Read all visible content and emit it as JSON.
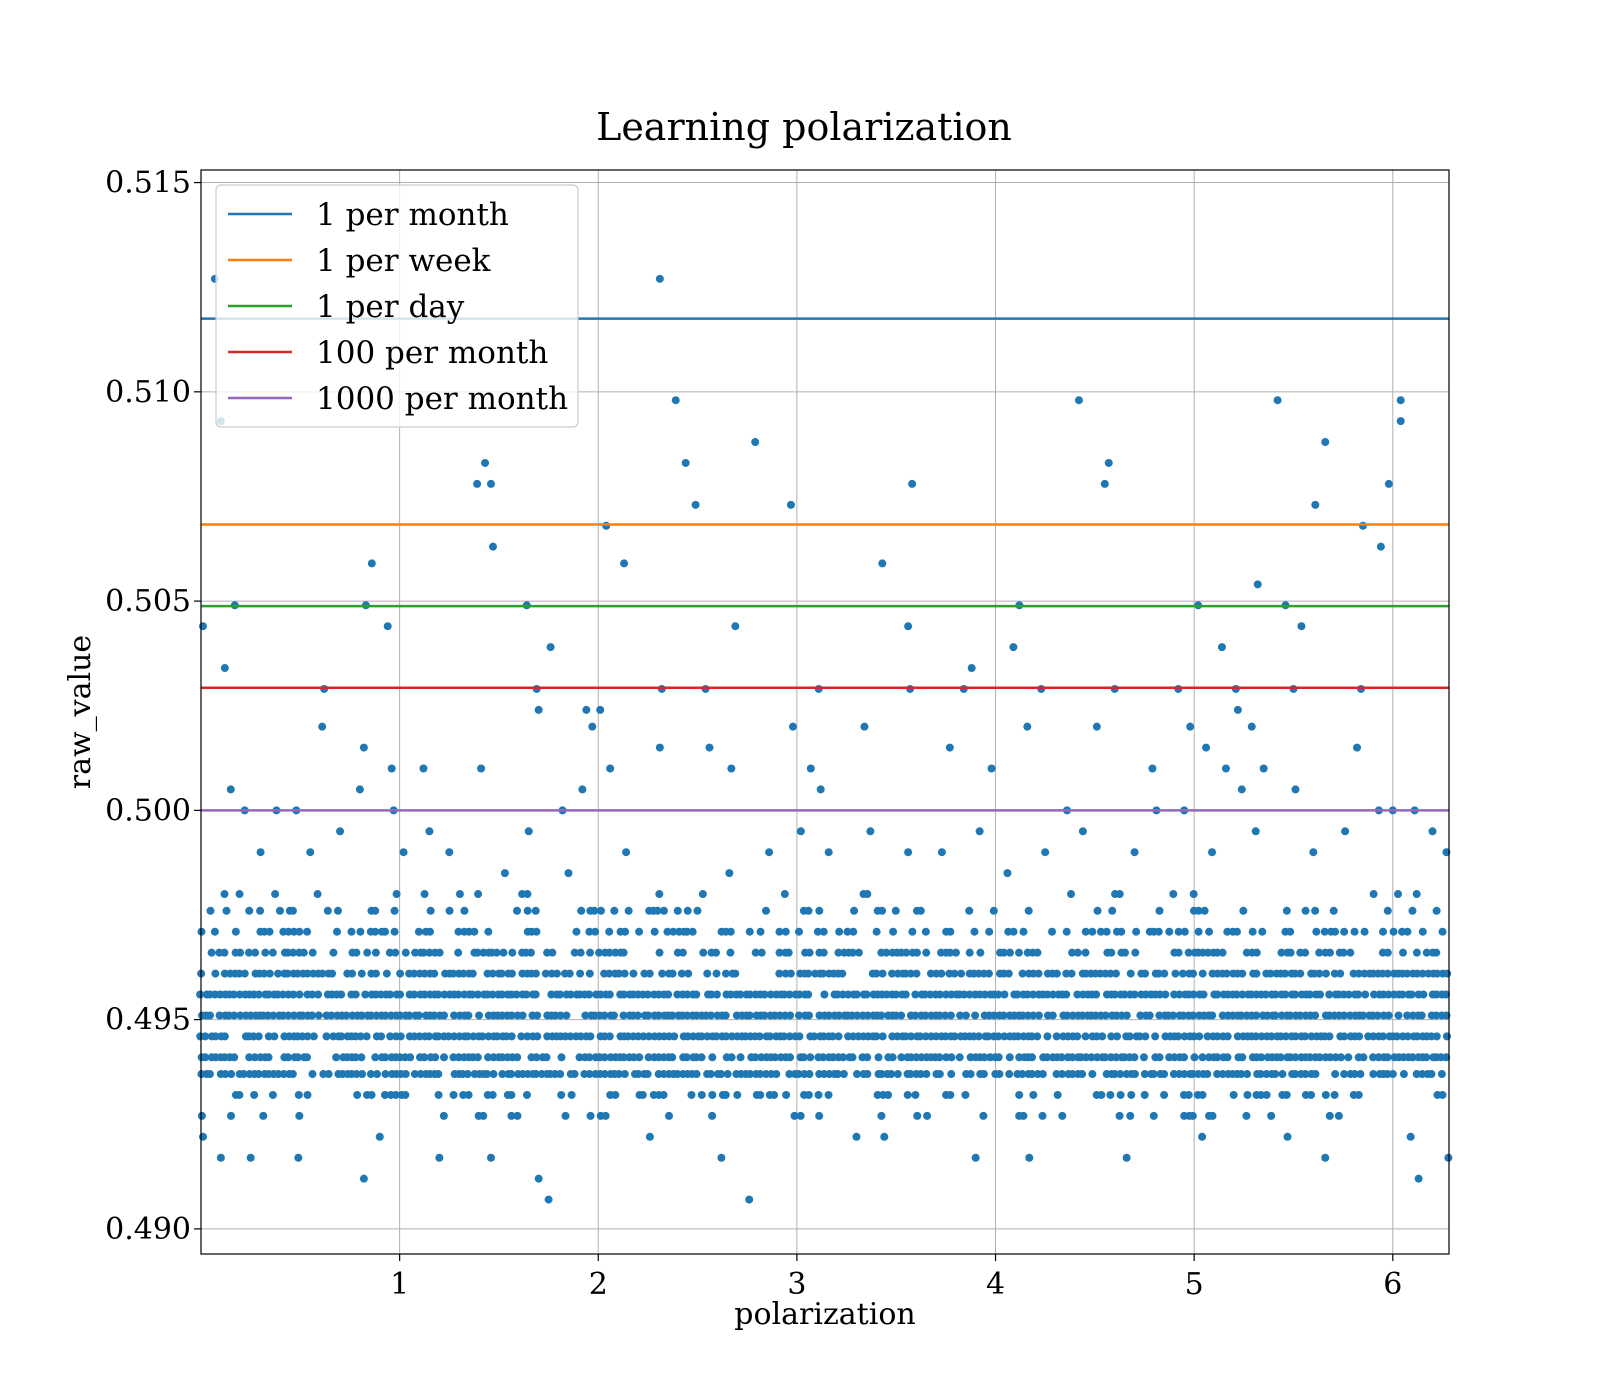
{
  "chart_data": {
    "type": "scatter",
    "title": "Learning polarization",
    "xlabel": "polarization",
    "ylabel": "raw_value",
    "xlim": [
      0.0,
      6.283
    ],
    "ylim": [
      0.4894,
      0.5153
    ],
    "xticks": [
      1,
      2,
      3,
      4,
      5,
      6
    ],
    "yticks": [
      0.49,
      0.495,
      0.5,
      0.505,
      0.51,
      0.515
    ],
    "xtick_labels": [
      "1",
      "2",
      "3",
      "4",
      "5",
      "6"
    ],
    "ytick_labels": [
      "0.490",
      "0.495",
      "0.500",
      "0.505",
      "0.510",
      "0.515"
    ],
    "grid": true,
    "legend_position": "top-left",
    "hlines": [
      {
        "name": "1 per month",
        "y": 0.51175,
        "color": "#1f77b4"
      },
      {
        "name": "1 per week",
        "y": 0.50683,
        "color": "#ff7f0e"
      },
      {
        "name": "1 per day",
        "y": 0.50488,
        "color": "#2ca02c"
      },
      {
        "name": "100 per month",
        "y": 0.50293,
        "color": "#d62728"
      },
      {
        "name": "1000 per month",
        "y": 0.5,
        "color": "#9467bd"
      }
    ],
    "scatter": {
      "color": "#1f77b4",
      "points": [
        [
          0.01,
          0.5044
        ],
        [
          0.07,
          0.5127
        ],
        [
          0.1,
          0.5093
        ],
        [
          0.12,
          0.5034
        ],
        [
          0.15,
          0.5005
        ],
        [
          0.17,
          0.5049
        ],
        [
          0.22,
          0.5
        ],
        [
          0.61,
          0.502
        ],
        [
          0.62,
          0.5029
        ],
        [
          0.8,
          0.5005
        ],
        [
          0.82,
          0.5015
        ],
        [
          0.83,
          0.5049
        ],
        [
          0.86,
          0.5059
        ],
        [
          0.94,
          0.5044
        ],
        [
          0.96,
          0.501
        ],
        [
          0.97,
          0.5
        ],
        [
          1.12,
          0.501
        ],
        [
          1.39,
          0.5078
        ],
        [
          1.43,
          0.5083
        ],
        [
          1.46,
          0.5078
        ],
        [
          1.47,
          0.5063
        ],
        [
          1.41,
          0.501
        ],
        [
          1.64,
          0.5049
        ],
        [
          1.69,
          0.5029
        ],
        [
          1.7,
          0.5024
        ],
        [
          1.76,
          0.5039
        ],
        [
          1.82,
          0.5
        ],
        [
          1.92,
          0.5005
        ],
        [
          1.94,
          0.5024
        ],
        [
          1.97,
          0.502
        ],
        [
          2.01,
          0.5024
        ],
        [
          2.04,
          0.5068
        ],
        [
          2.06,
          0.501
        ],
        [
          2.13,
          0.5059
        ],
        [
          2.31,
          0.5127
        ],
        [
          2.32,
          0.5029
        ],
        [
          2.31,
          0.5015
        ],
        [
          2.39,
          0.5098
        ],
        [
          2.44,
          0.5083
        ],
        [
          2.49,
          0.5073
        ],
        [
          2.54,
          0.5029
        ],
        [
          2.56,
          0.5015
        ],
        [
          2.67,
          0.501
        ],
        [
          2.69,
          0.5044
        ],
        [
          2.79,
          0.5088
        ],
        [
          2.97,
          0.5073
        ],
        [
          2.98,
          0.502
        ],
        [
          3.07,
          0.501
        ],
        [
          3.11,
          0.5029
        ],
        [
          3.12,
          0.5005
        ],
        [
          3.34,
          0.502
        ],
        [
          3.43,
          0.5059
        ],
        [
          3.56,
          0.5044
        ],
        [
          3.58,
          0.5078
        ],
        [
          3.57,
          0.5029
        ],
        [
          3.77,
          0.5015
        ],
        [
          3.84,
          0.5029
        ],
        [
          3.88,
          0.5034
        ],
        [
          3.98,
          0.501
        ],
        [
          4.09,
          0.5039
        ],
        [
          4.12,
          0.5049
        ],
        [
          4.16,
          0.502
        ],
        [
          4.23,
          0.5029
        ],
        [
          4.42,
          0.5098
        ],
        [
          4.51,
          0.502
        ],
        [
          4.55,
          0.5078
        ],
        [
          4.57,
          0.5083
        ],
        [
          4.6,
          0.5029
        ],
        [
          4.79,
          0.501
        ],
        [
          4.92,
          0.5029
        ],
        [
          4.98,
          0.502
        ],
        [
          5.02,
          0.5049
        ],
        [
          5.06,
          0.5015
        ],
        [
          5.14,
          0.5039
        ],
        [
          5.16,
          0.501
        ],
        [
          5.21,
          0.5029
        ],
        [
          5.22,
          0.5024
        ],
        [
          5.24,
          0.5005
        ],
        [
          5.29,
          0.502
        ],
        [
          5.32,
          0.5054
        ],
        [
          5.35,
          0.501
        ],
        [
          5.42,
          0.5098
        ],
        [
          5.46,
          0.5049
        ],
        [
          5.5,
          0.5029
        ],
        [
          5.51,
          0.5005
        ],
        [
          5.54,
          0.5044
        ],
        [
          5.61,
          0.5073
        ],
        [
          5.66,
          0.5088
        ],
        [
          5.82,
          0.5015
        ],
        [
          5.85,
          0.5068
        ],
        [
          5.84,
          0.5029
        ],
        [
          5.94,
          0.5063
        ],
        [
          5.98,
          0.5078
        ],
        [
          6.04,
          0.5098
        ],
        [
          6.04,
          0.5093
        ],
        [
          6.11,
          0.5
        ],
        [
          0.01,
          0.4922
        ],
        [
          0.1,
          0.4917
        ],
        [
          0.25,
          0.4917
        ],
        [
          0.49,
          0.4917
        ],
        [
          0.82,
          0.4912
        ],
        [
          0.9,
          0.4922
        ],
        [
          1.2,
          0.4917
        ],
        [
          1.46,
          0.4917
        ],
        [
          1.7,
          0.4912
        ],
        [
          1.75,
          0.4907
        ],
        [
          2.26,
          0.4922
        ],
        [
          2.62,
          0.4917
        ],
        [
          2.76,
          0.4907
        ],
        [
          3.3,
          0.4922
        ],
        [
          3.44,
          0.4922
        ],
        [
          3.9,
          0.4917
        ],
        [
          4.17,
          0.4917
        ],
        [
          4.66,
          0.4917
        ],
        [
          5.04,
          0.4922
        ],
        [
          5.47,
          0.4922
        ],
        [
          5.66,
          0.4917
        ],
        [
          6.09,
          0.4922
        ],
        [
          6.13,
          0.4912
        ],
        [
          6.28,
          0.4917
        ],
        [
          0.3,
          0.499
        ],
        [
          0.38,
          0.5
        ],
        [
          0.48,
          0.5
        ],
        [
          0.55,
          0.499
        ],
        [
          0.7,
          0.4995
        ],
        [
          1.02,
          0.499
        ],
        [
          1.15,
          0.4995
        ],
        [
          1.25,
          0.499
        ],
        [
          1.53,
          0.4985
        ],
        [
          1.65,
          0.4995
        ],
        [
          1.85,
          0.4985
        ],
        [
          2.14,
          0.499
        ],
        [
          2.66,
          0.4985
        ],
        [
          2.86,
          0.499
        ],
        [
          3.02,
          0.4995
        ],
        [
          3.16,
          0.499
        ],
        [
          3.37,
          0.4995
        ],
        [
          3.56,
          0.499
        ],
        [
          3.73,
          0.499
        ],
        [
          3.92,
          0.4995
        ],
        [
          4.06,
          0.4985
        ],
        [
          4.25,
          0.499
        ],
        [
          4.36,
          0.5
        ],
        [
          4.44,
          0.4995
        ],
        [
          4.7,
          0.499
        ],
        [
          4.81,
          0.5
        ],
        [
          4.95,
          0.5
        ],
        [
          5.09,
          0.499
        ],
        [
          5.31,
          0.4995
        ],
        [
          5.6,
          0.499
        ],
        [
          5.76,
          0.4995
        ],
        [
          5.93,
          0.5
        ],
        [
          6.0,
          0.5
        ],
        [
          6.2,
          0.4995
        ],
        [
          6.27,
          0.499
        ]
      ]
    }
  }
}
